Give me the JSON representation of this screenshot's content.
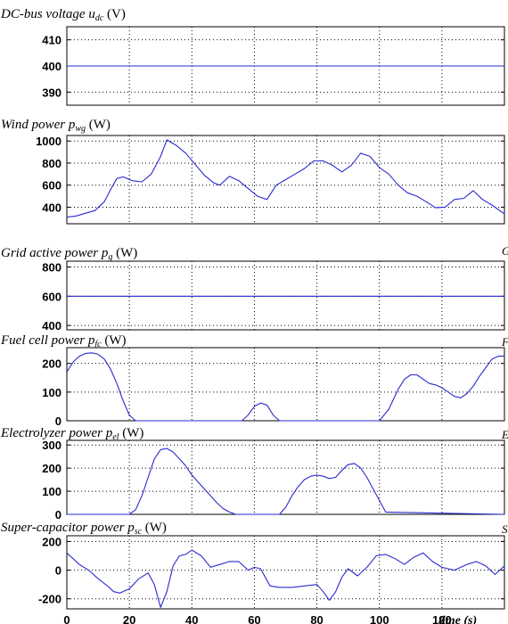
{
  "chart_data": [
    {
      "type": "line",
      "title_parts": [
        "DC-bus voltage ",
        "u",
        "dc",
        " (V)"
      ],
      "ylim": [
        385,
        415
      ],
      "yticks": [
        390,
        400,
        410
      ],
      "grid": true,
      "color": "#2a2ad0",
      "series": [
        {
          "x": [
            0,
            140
          ],
          "y": [
            400,
            400
          ]
        }
      ]
    },
    {
      "type": "line",
      "title_parts": [
        "Wind power ",
        "p",
        "wg",
        " (W)"
      ],
      "ylim": [
        250,
        1050
      ],
      "yticks": [
        400,
        600,
        800,
        1000
      ],
      "grid": true,
      "color": "#2a2ad0",
      "series": [
        {
          "x": [
            0,
            3,
            6,
            9,
            12,
            14,
            16,
            18,
            21,
            24,
            27,
            30,
            32,
            35,
            38,
            41,
            44,
            47,
            49,
            52,
            55,
            58,
            61,
            64,
            67,
            70,
            73,
            76,
            79,
            82,
            85,
            88,
            91,
            94,
            97,
            100,
            103,
            106,
            109,
            112,
            115,
            118,
            121,
            124,
            127,
            130,
            133,
            136,
            140
          ],
          "y": [
            310,
            320,
            345,
            370,
            450,
            560,
            660,
            675,
            640,
            630,
            700,
            860,
            1010,
            960,
            890,
            790,
            690,
            620,
            600,
            680,
            640,
            570,
            500,
            470,
            600,
            650,
            700,
            750,
            820,
            820,
            780,
            720,
            780,
            890,
            860,
            760,
            700,
            600,
            530,
            500,
            450,
            395,
            400,
            470,
            480,
            550,
            470,
            420,
            340
          ]
        }
      ]
    },
    {
      "type": "line",
      "title_parts": [
        "Grid active power ",
        "p",
        "g",
        " (W)"
      ],
      "ylim": [
        370,
        840
      ],
      "yticks": [
        400,
        600,
        800
      ],
      "grid": true,
      "color": "#2a2ad0",
      "series": [
        {
          "x": [
            0,
            140
          ],
          "y": [
            600,
            600
          ]
        }
      ]
    },
    {
      "type": "line",
      "title_parts": [
        "Fuel cell power ",
        "p",
        "fc",
        " (W)"
      ],
      "ylim": [
        0,
        255
      ],
      "yticks": [
        0,
        100,
        200
      ],
      "grid": true,
      "color": "#2a2ad0",
      "series": [
        {
          "x": [
            0,
            2,
            4,
            6,
            8,
            10,
            12,
            14,
            16,
            18,
            20,
            22,
            24,
            40,
            56,
            58,
            60,
            62,
            64,
            66,
            68,
            100,
            103,
            106,
            108,
            110,
            112,
            114,
            116,
            118,
            120,
            122,
            124,
            126,
            128,
            130,
            132,
            134,
            136,
            138,
            140
          ],
          "y": [
            170,
            205,
            225,
            235,
            237,
            232,
            215,
            180,
            130,
            70,
            20,
            0,
            0,
            0,
            0,
            20,
            50,
            62,
            55,
            20,
            0,
            0,
            40,
            110,
            145,
            160,
            160,
            145,
            130,
            125,
            115,
            100,
            85,
            80,
            95,
            120,
            155,
            185,
            215,
            225,
            225
          ]
        }
      ]
    },
    {
      "type": "line",
      "title_parts": [
        "Electrolyzer power ",
        "p",
        "el",
        " (W)"
      ],
      "ylim": [
        0,
        320
      ],
      "yticks": [
        0,
        100,
        200,
        300
      ],
      "grid": true,
      "color": "#2a2ad0",
      "series": [
        {
          "x": [
            0,
            20,
            22,
            24,
            26,
            28,
            30,
            32,
            34,
            36,
            38,
            40,
            42,
            44,
            46,
            48,
            50,
            52,
            54,
            56,
            58,
            68,
            70,
            72,
            74,
            76,
            78,
            80,
            82,
            84,
            86,
            88,
            90,
            92,
            94,
            96,
            98,
            100,
            102,
            140
          ],
          "y": [
            0,
            0,
            20,
            80,
            160,
            240,
            280,
            285,
            270,
            240,
            210,
            170,
            140,
            110,
            80,
            50,
            25,
            10,
            0,
            0,
            0,
            0,
            30,
            80,
            120,
            150,
            165,
            170,
            165,
            155,
            160,
            190,
            215,
            220,
            200,
            160,
            110,
            60,
            10,
            0
          ]
        }
      ]
    },
    {
      "type": "line",
      "title_parts": [
        "Super-capacitor power ",
        "p",
        "sc",
        " (W)"
      ],
      "ylim": [
        -270,
        240
      ],
      "yticks": [
        -200,
        0,
        200
      ],
      "xlim": [
        0,
        140
      ],
      "xticks": [
        0,
        20,
        40,
        60,
        80,
        100,
        120
      ],
      "xlabel": "time (s)",
      "grid": true,
      "color": "#2a2ad0",
      "series": [
        {
          "x": [
            0,
            2,
            4,
            7,
            10,
            13,
            15,
            17,
            20,
            23,
            26,
            28,
            30,
            32,
            34,
            36,
            38,
            40,
            43,
            46,
            49,
            52,
            55,
            58,
            60,
            62,
            65,
            68,
            72,
            76,
            80,
            82,
            84,
            86,
            88,
            90,
            93,
            96,
            99,
            102,
            105,
            108,
            111,
            114,
            117,
            120,
            124,
            128,
            131,
            134,
            137,
            140
          ],
          "y": [
            120,
            80,
            40,
            0,
            -60,
            -110,
            -150,
            -160,
            -130,
            -60,
            -20,
            -100,
            -260,
            -150,
            30,
            100,
            110,
            140,
            100,
            20,
            40,
            60,
            60,
            0,
            20,
            10,
            -110,
            -120,
            -120,
            -110,
            -100,
            -150,
            -210,
            -150,
            -50,
            10,
            -40,
            20,
            100,
            110,
            80,
            40,
            90,
            120,
            60,
            20,
            0,
            40,
            60,
            30,
            -30,
            30
          ]
        }
      ]
    }
  ],
  "side_marks": [
    "G",
    "F",
    "E",
    "S"
  ]
}
